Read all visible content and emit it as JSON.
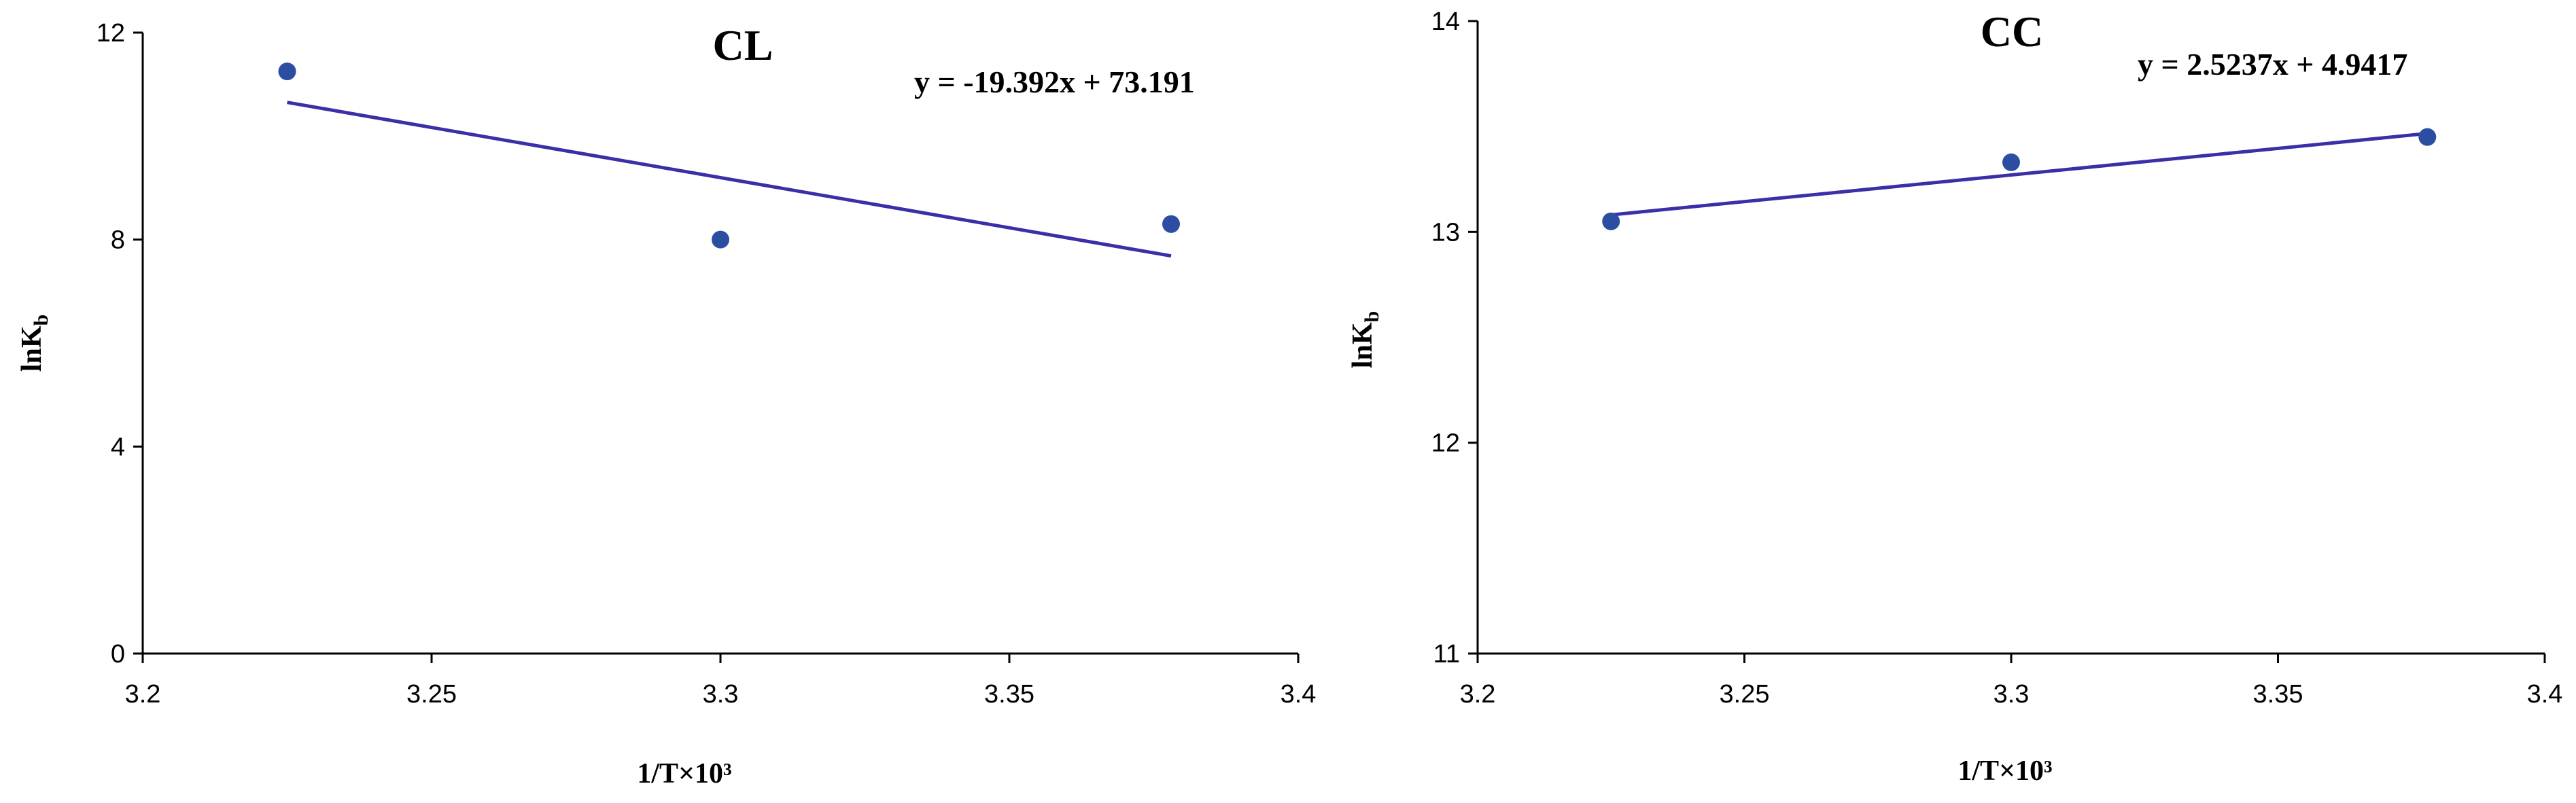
{
  "chart_data": [
    {
      "type": "scatter",
      "title": "CL",
      "xlabel": "1/T×10³",
      "ylabel": "lnK",
      "ylabel_sub": "b",
      "xlim": [
        3.2,
        3.4
      ],
      "ylim": [
        0,
        12
      ],
      "xticks": [
        "3.2",
        "3.25",
        "3.3",
        "3.35",
        "3.4"
      ],
      "yticks": [
        "0",
        "4",
        "8",
        "12"
      ],
      "x": [
        3.225,
        3.3,
        3.378
      ],
      "y": [
        11.25,
        8.0,
        8.3
      ],
      "trendline": {
        "slope": -19.392,
        "intercept": 73.191,
        "x_range": [
          3.225,
          3.378
        ]
      },
      "equation": "y = -19.392x + 73.191",
      "marker_color": "#2b4ea3",
      "line_color": "#3b2fa8",
      "grid": false
    },
    {
      "type": "scatter",
      "title": "CC",
      "xlabel": "1/T×10³",
      "ylabel": "lnK",
      "ylabel_sub": "b",
      "xlim": [
        3.2,
        3.4
      ],
      "ylim": [
        11,
        14
      ],
      "xticks": [
        "3.2",
        "3.25",
        "3.3",
        "3.35",
        "3.4"
      ],
      "yticks": [
        "11",
        "12",
        "13",
        "14"
      ],
      "x": [
        3.225,
        3.3,
        3.378
      ],
      "y": [
        13.05,
        13.33,
        13.45
      ],
      "trendline": {
        "slope": 2.5237,
        "intercept": 4.9417,
        "x_range": [
          3.225,
          3.378
        ]
      },
      "equation": "y = 2.5237x + 4.9417",
      "marker_color": "#2b4ea3",
      "line_color": "#3b2fa8",
      "grid": false
    }
  ]
}
